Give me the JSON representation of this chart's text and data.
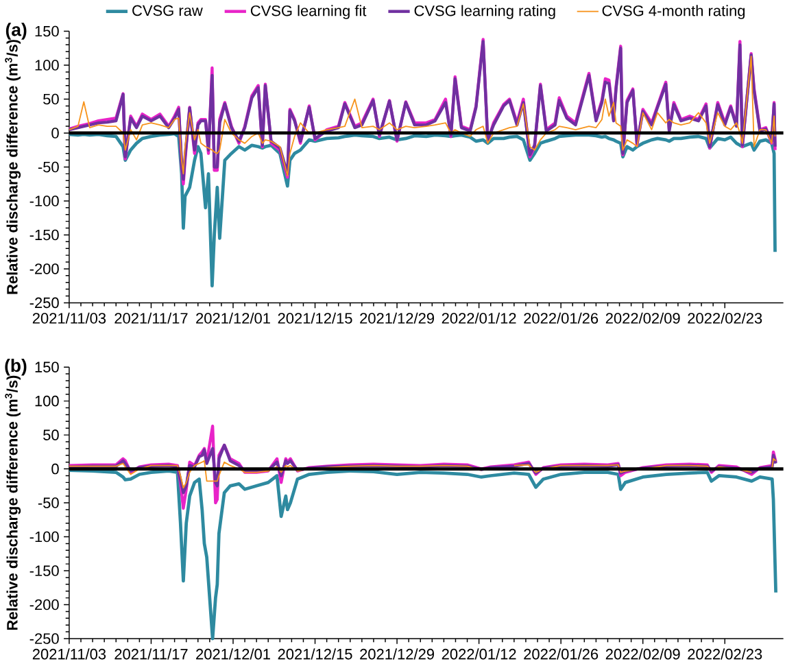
{
  "chart_data": [
    {
      "type": "line",
      "ylabel": "Relative discharge difference (m$^{3}$/s)",
      "annotations": [
        "(a)"
      ],
      "legend": "top",
      "xlim": [
        "2021-11-03",
        "2022-03-05"
      ],
      "ylim": [
        -250,
        150
      ],
      "xticks": [
        {
          "value": "2021-11-03",
          "label": "2021/11/03"
        },
        {
          "value": "2021-11-17",
          "label": "2021/11/17"
        },
        {
          "value": "2021-12-01",
          "label": "2021/12/01"
        },
        {
          "value": "2021-12-15",
          "label": "2021/12/15"
        },
        {
          "value": "2021-12-29",
          "label": "2021/12/29"
        },
        {
          "value": "2022-01-12",
          "label": "2022/01/12"
        },
        {
          "value": "2022-01-26",
          "label": "2022/01/26"
        },
        {
          "value": "2022-02-09",
          "label": "2022/02/09"
        },
        {
          "value": "2022-02-23",
          "label": "2022/02/23"
        }
      ],
      "yticks": [
        -250,
        -200,
        -150,
        -100,
        -50,
        0,
        50,
        100,
        150
      ],
      "ref_lines": [
        {
          "axis": "y",
          "value": 0,
          "color": "#000000"
        }
      ],
      "x": [
        "2021-11-03",
        "2021-11-04T12:00",
        "2021-11-05T12:00",
        "2021-11-06T12:00",
        "2021-11-08",
        "2021-11-09T12:00",
        "2021-11-11",
        "2021-11-12T05:00",
        "2021-11-12T14:00",
        "2021-11-13T12:00",
        "2021-11-14T12:00",
        "2021-11-15T12:00",
        "2021-11-17",
        "2021-11-18T12:00",
        "2021-11-20",
        "2021-11-21",
        "2021-11-21T17:00",
        "2021-11-22T05:00",
        "2021-11-22T12:00",
        "2021-11-22T19:00",
        "2021-11-23T14:00",
        "2021-11-24T10:00",
        "2021-11-25",
        "2021-11-25T12:00",
        "2021-11-26T07:00",
        "2021-11-26T19:00",
        "2021-11-27T10:00",
        "2021-11-27T19:00",
        "2021-11-28T07:00",
        "2021-11-28T17:00",
        "2021-11-29T14:00",
        "2021-11-30T17:00",
        "2021-12-02",
        "2021-12-03",
        "2021-12-04T05:00",
        "2021-12-05T07:00",
        "2021-12-06",
        "2021-12-06T12:00",
        "2021-12-07T12:00",
        "2021-12-09",
        "2021-12-10T07:00",
        "2021-12-10T17:00",
        "2021-12-11T12:00",
        "2021-12-12T12:00",
        "2021-12-14",
        "2021-12-15",
        "2021-12-17",
        "2021-12-19",
        "2021-12-20T02:00",
        "2021-12-21T19:00",
        "2021-12-23",
        "2021-12-24T22:00",
        "2021-12-26",
        "2021-12-27T17:00",
        "2021-12-29",
        "2021-12-30T12:00",
        "2022-01-01",
        "2022-01-03",
        "2022-01-04T12:00",
        "2022-01-06T07:00",
        "2022-01-07T05:00",
        "2022-01-07T22:00",
        "2022-01-09",
        "2022-01-10T12:00",
        "2022-01-11T12:00",
        "2022-01-12T17:00",
        "2022-01-13T12:00",
        "2022-01-14T12:00",
        "2022-01-16T05:00",
        "2022-01-17T05:00",
        "2022-01-18T12:00",
        "2022-01-19T14:00",
        "2022-01-20T17:00",
        "2022-01-21T12:00",
        "2022-01-22T12:00",
        "2022-01-23T12:00",
        "2022-01-25",
        "2022-01-25T17:00",
        "2022-01-27",
        "2022-01-28T12:00",
        "2022-01-30T19:00",
        "2022-02-01",
        "2022-02-02",
        "2022-02-02T14:00",
        "2022-02-03T05:00",
        "2022-02-04",
        "2022-02-04T10:00",
        "2022-02-05T05:00",
        "2022-02-05T14:00",
        "2022-02-06T07:00",
        "2022-02-07T07:00",
        "2022-02-08",
        "2022-02-09",
        "2022-02-10T12:00",
        "2022-02-11T12:00",
        "2022-02-12T22:00",
        "2022-02-13T12:00",
        "2022-02-14T07:00",
        "2022-02-15T12:00",
        "2022-02-17",
        "2022-02-18T12:00",
        "2022-02-19T19:00",
        "2022-02-20T10:00",
        "2022-02-21T19:00",
        "2022-02-23",
        "2022-02-24",
        "2022-02-25",
        "2022-02-25T14:00",
        "2022-02-26",
        "2022-02-27T12:00",
        "2022-02-28",
        "2022-03-01",
        "2022-03-02",
        "2022-03-03",
        "2022-03-03T10:00",
        "2022-03-03T14:00"
      ],
      "series": [
        {
          "name": "CVSG raw",
          "color": "#2e8aa0",
          "values": [
            -2,
            -3,
            -2,
            -3,
            -2,
            -4,
            -5,
            -20,
            -40,
            -25,
            -15,
            -8,
            -5,
            -3,
            -2,
            -1,
            -5,
            -60,
            -140,
            -93,
            -80,
            -40,
            -20,
            -30,
            -110,
            -60,
            -225,
            -150,
            -80,
            -155,
            -40,
            -30,
            -20,
            -25,
            -18,
            -20,
            -22,
            -20,
            -18,
            -30,
            -78,
            -40,
            -30,
            -25,
            -10,
            -12,
            -8,
            -7,
            -5,
            -3,
            -4,
            -5,
            -8,
            -6,
            -10,
            -8,
            -4,
            -5,
            -3,
            -4,
            -5,
            -4,
            -3,
            -6,
            -12,
            -10,
            -15,
            -8,
            -8,
            -6,
            -5,
            -10,
            -40,
            -30,
            -15,
            -12,
            -8,
            -5,
            -4,
            -3,
            -3,
            -4,
            -6,
            -5,
            -8,
            -10,
            -12,
            -15,
            -35,
            -20,
            -25,
            -20,
            -15,
            -10,
            -8,
            -10,
            -12,
            -8,
            -8,
            -6,
            -5,
            -8,
            -22,
            -8,
            -10,
            -6,
            -15,
            -18,
            -20,
            -15,
            -25,
            -12,
            -10,
            -15,
            -30,
            -175
          ]
        },
        {
          "name": "CVSG learning fit",
          "color": "#e823c8",
          "values": [
            6,
            10,
            12,
            14,
            18,
            20,
            22,
            58,
            -38,
            25,
            10,
            28,
            20,
            28,
            10,
            25,
            38,
            -50,
            -75,
            -40,
            38,
            -30,
            15,
            20,
            20,
            -30,
            96,
            -55,
            -55,
            20,
            45,
            10,
            -15,
            10,
            55,
            70,
            -20,
            72,
            -15,
            -25,
            -65,
            35,
            20,
            -15,
            40,
            -10,
            5,
            10,
            45,
            10,
            15,
            50,
            -5,
            48,
            -12,
            46,
            15,
            15,
            20,
            50,
            -5,
            83,
            10,
            5,
            40,
            138,
            -12,
            15,
            42,
            50,
            15,
            50,
            -35,
            -20,
            72,
            5,
            15,
            52,
            25,
            15,
            88,
            20,
            48,
            80,
            78,
            20,
            68,
            128,
            -32,
            48,
            65,
            -18,
            35,
            15,
            40,
            75,
            5,
            45,
            20,
            25,
            20,
            43,
            -22,
            45,
            15,
            40,
            12,
            135,
            -20,
            117,
            65,
            5,
            8,
            -15,
            45,
            -25
          ]
        },
        {
          "name": "CVSG learning rating",
          "color": "#7030a0",
          "values": [
            5,
            8,
            10,
            12,
            15,
            16,
            18,
            57,
            -35,
            22,
            8,
            25,
            18,
            25,
            8,
            22,
            35,
            -45,
            -68,
            -35,
            37,
            -25,
            12,
            18,
            18,
            -25,
            85,
            -50,
            -50,
            15,
            43,
            8,
            -12,
            8,
            52,
            67,
            -18,
            70,
            -12,
            -22,
            -60,
            33,
            18,
            -12,
            38,
            -8,
            3,
            8,
            43,
            8,
            12,
            48,
            -3,
            47,
            -10,
            45,
            12,
            12,
            18,
            45,
            -3,
            80,
            8,
            3,
            38,
            135,
            -10,
            12,
            40,
            48,
            12,
            45,
            -32,
            -18,
            70,
            3,
            12,
            48,
            22,
            12,
            85,
            18,
            45,
            75,
            73,
            18,
            65,
            125,
            -30,
            45,
            63,
            -15,
            32,
            12,
            38,
            72,
            3,
            42,
            18,
            22,
            18,
            40,
            -20,
            42,
            12,
            38,
            10,
            130,
            -18,
            115,
            62,
            3,
            6,
            -12,
            43,
            -20
          ]
        },
        {
          "name": "CVSG 4-month rating",
          "color": "#f7941d",
          "values": [
            5,
            10,
            46,
            8,
            12,
            10,
            10,
            0,
            -25,
            5,
            -10,
            12,
            15,
            12,
            8,
            20,
            22,
            -40,
            -60,
            -20,
            30,
            -10,
            5,
            -15,
            -20,
            -22,
            -25,
            -28,
            -30,
            -25,
            20,
            0,
            -10,
            -15,
            -5,
            0,
            -15,
            -10,
            -12,
            -20,
            -63,
            -30,
            -5,
            15,
            0,
            0,
            5,
            8,
            10,
            50,
            8,
            10,
            5,
            15,
            5,
            10,
            8,
            10,
            12,
            15,
            0,
            5,
            0,
            -5,
            5,
            10,
            -15,
            0,
            5,
            8,
            10,
            43,
            -20,
            -25,
            -10,
            0,
            5,
            10,
            8,
            5,
            10,
            8,
            20,
            50,
            25,
            45,
            15,
            10,
            -25,
            -10,
            -15,
            -20,
            30,
            5,
            30,
            15,
            20,
            15,
            12,
            15,
            30,
            15,
            -15,
            30,
            10,
            5,
            15,
            0,
            -15,
            113,
            -20,
            5,
            5,
            -15,
            25,
            -5
          ]
        }
      ]
    },
    {
      "type": "line",
      "ylabel": "Relative discharge difference (m$^{3}$/s)",
      "annotations": [
        "(b)"
      ],
      "xlim": [
        "2021-11-03",
        "2022-03-05"
      ],
      "ylim": [
        -250,
        150
      ],
      "xticks": [
        {
          "value": "2021-11-03",
          "label": "2021/11/03"
        },
        {
          "value": "2021-11-17",
          "label": "2021/11/17"
        },
        {
          "value": "2021-12-01",
          "label": "2021/12/01"
        },
        {
          "value": "2021-12-15",
          "label": "2021/12/15"
        },
        {
          "value": "2021-12-29",
          "label": "2021/12/29"
        },
        {
          "value": "2022-01-12",
          "label": "2022/01/12"
        },
        {
          "value": "2022-01-26",
          "label": "2022/01/26"
        },
        {
          "value": "2022-02-09",
          "label": "2022/02/09"
        },
        {
          "value": "2022-02-23",
          "label": "2022/02/23"
        }
      ],
      "yticks": [
        -250,
        -200,
        -150,
        -100,
        -50,
        0,
        50,
        100,
        150
      ],
      "ref_lines": [
        {
          "axis": "y",
          "value": 0,
          "color": "#000000"
        }
      ],
      "x": [
        "2021-11-03",
        "2021-11-07",
        "2021-11-11",
        "2021-11-12T05:00",
        "2021-11-12T14:00",
        "2021-11-13T12:00",
        "2021-11-15",
        "2021-11-17",
        "2021-11-20",
        "2021-11-21T12:00",
        "2021-11-22",
        "2021-11-22T12:00",
        "2021-11-23",
        "2021-11-23T14:00",
        "2021-11-24T10:00",
        "2021-11-25T05:00",
        "2021-11-25T17:00",
        "2021-11-26T02:00",
        "2021-11-26T12:00",
        "2021-11-27T12:00",
        "2021-11-28",
        "2021-11-28T07:00",
        "2021-11-28T14:00",
        "2021-11-29T12:00",
        "2021-11-30T12:00",
        "2021-12-02",
        "2021-12-03",
        "2021-12-05",
        "2021-12-07",
        "2021-12-08T12:00",
        "2021-12-09T05:00",
        "2021-12-10",
        "2021-12-10T07:00",
        "2021-12-10T19:00",
        "2021-12-12",
        "2021-12-14",
        "2021-12-17",
        "2021-12-21",
        "2021-12-25",
        "2021-12-29",
        "2022-01-02",
        "2022-01-06",
        "2022-01-10",
        "2022-01-12T10:00",
        "2022-01-14",
        "2022-01-18",
        "2022-01-20T12:00",
        "2022-01-21T17:00",
        "2022-01-23",
        "2022-01-26",
        "2022-01-30",
        "2022-02-03",
        "2022-02-04T19:00",
        "2022-02-05T05:00",
        "2022-02-06",
        "2022-02-09",
        "2022-02-13",
        "2022-02-17",
        "2022-02-20",
        "2022-02-20T17:00",
        "2022-02-22",
        "2022-02-25",
        "2022-02-27T14:00",
        "2022-03-01",
        "2022-03-03T02:00",
        "2022-03-03T07:00",
        "2022-03-03T17:00"
      ],
      "series": [
        {
          "color": "#2e8aa0",
          "values": [
            -2,
            -3,
            -5,
            -12,
            -16,
            -15,
            -8,
            -5,
            -3,
            -5,
            -78,
            -165,
            -80,
            -40,
            -20,
            -15,
            -60,
            -110,
            -130,
            -250,
            -190,
            -170,
            -95,
            -35,
            -25,
            -22,
            -30,
            -25,
            -20,
            -10,
            -70,
            -40,
            -60,
            -50,
            -15,
            -8,
            -5,
            -3,
            -4,
            -8,
            -5,
            -6,
            -8,
            -12,
            -10,
            -6,
            -8,
            -27,
            -15,
            -8,
            -5,
            -5,
            -8,
            -30,
            -20,
            -12,
            -8,
            -6,
            -5,
            -18,
            -10,
            -12,
            -18,
            -12,
            -15,
            -45,
            -182
          ]
        },
        {
          "color": "#e823c8",
          "values": [
            5,
            6,
            6,
            15,
            12,
            -5,
            3,
            6,
            7,
            5,
            -20,
            -58,
            -30,
            10,
            5,
            20,
            25,
            30,
            10,
            63,
            -50,
            -45,
            20,
            35,
            15,
            8,
            -5,
            -5,
            -3,
            15,
            -20,
            15,
            10,
            15,
            -3,
            2,
            4,
            6,
            7,
            6,
            5,
            7,
            6,
            0,
            3,
            6,
            10,
            -8,
            2,
            6,
            7,
            6,
            8,
            -10,
            -5,
            2,
            6,
            7,
            6,
            -5,
            5,
            3,
            -8,
            2,
            5,
            25,
            10
          ]
        },
        {
          "color": "#7030a0",
          "values": [
            3,
            4,
            4,
            12,
            8,
            -3,
            2,
            4,
            5,
            3,
            -15,
            -35,
            -25,
            5,
            3,
            18,
            20,
            28,
            8,
            30,
            -20,
            -25,
            15,
            35,
            12,
            5,
            -3,
            -3,
            -2,
            10,
            -10,
            12,
            8,
            12,
            -2,
            1,
            3,
            4,
            5,
            4,
            3,
            5,
            4,
            -1,
            2,
            4,
            8,
            -6,
            1,
            4,
            5,
            4,
            6,
            -6,
            -3,
            1,
            4,
            5,
            4,
            -3,
            3,
            1,
            -5,
            1,
            3,
            20,
            8
          ]
        },
        {
          "color": "#f7941d",
          "values": [
            4,
            4,
            4,
            8,
            3,
            -8,
            0,
            5,
            5,
            5,
            -10,
            -28,
            -20,
            -5,
            5,
            8,
            10,
            12,
            -18,
            -18,
            -18,
            -18,
            -10,
            10,
            5,
            0,
            -5,
            -5,
            -3,
            3,
            -5,
            5,
            3,
            5,
            -3,
            0,
            2,
            4,
            5,
            4,
            4,
            5,
            4,
            -2,
            null,
            5,
            6,
            -5,
            0,
            5,
            5,
            5,
            6,
            -5,
            -3,
            0,
            5,
            5,
            4,
            -2,
            3,
            0,
            -5,
            null,
            2,
            15,
            12
          ]
        }
      ]
    }
  ]
}
